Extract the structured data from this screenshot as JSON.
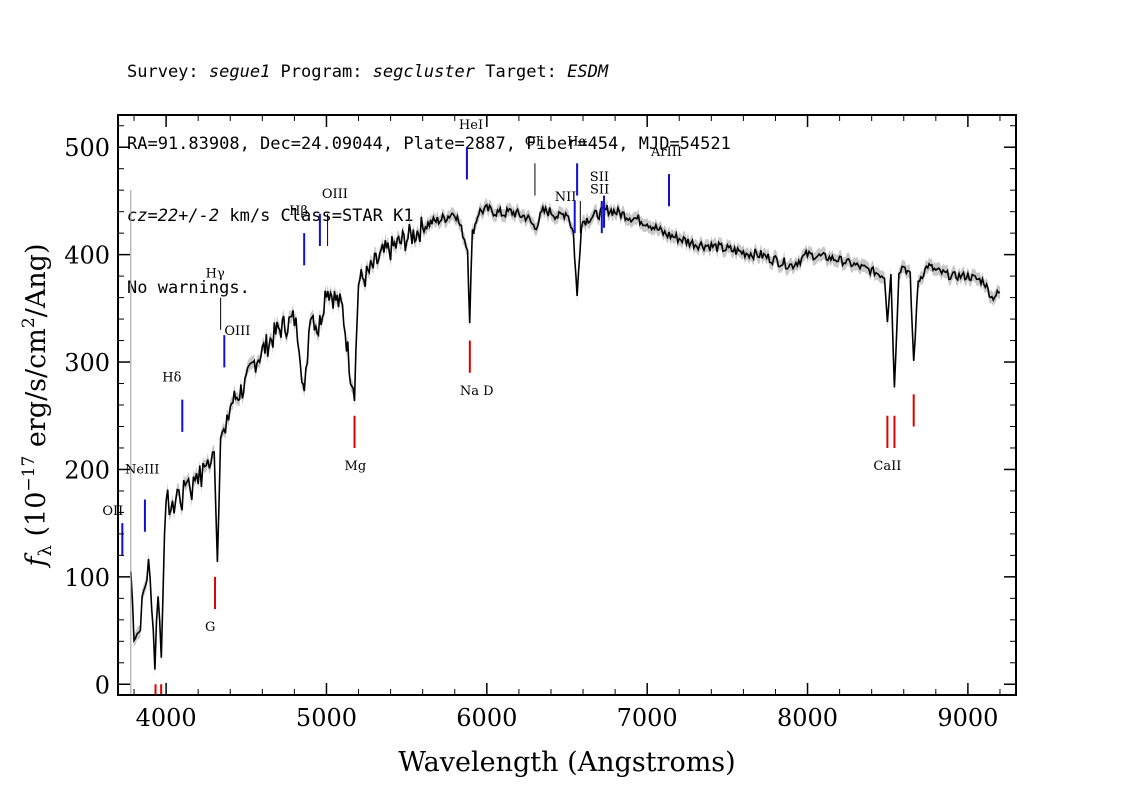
{
  "header": {
    "survey_label": "Survey: ",
    "survey": "segue1",
    "program_label": " Program: ",
    "program": "segcluster",
    "target_label": " Target: ",
    "target": "ESDM",
    "line2": "RA=91.83908, Dec=24.09044, Plate=2887, Fiber=454, MJD=54521",
    "cz": "cz=22+/-2",
    "line3_rest": " km/s Class=STAR K1",
    "line4": "No warnings."
  },
  "chart_data": {
    "type": "line",
    "title": "",
    "xlabel": "Wavelength (Angstroms)",
    "ylabel": "f_λ (10^-17 erg/s/cm^2/Ang)",
    "xlim": [
      3700,
      9300
    ],
    "ylim": [
      -10,
      530
    ],
    "xticks": [
      4000,
      5000,
      6000,
      7000,
      8000,
      9000
    ],
    "yticks": [
      0,
      100,
      200,
      300,
      400,
      500
    ],
    "grid": false,
    "colors": {
      "spectrum": "#000000",
      "error": "#b0b0b0",
      "emission": "#1010d0",
      "absorption": "#e00000"
    },
    "series": [
      {
        "x": [
          3780,
          3800,
          3830,
          3860,
          3890,
          3910,
          3930,
          3950,
          3970,
          3990,
          4010,
          4040,
          4070,
          4100,
          4130,
          4160,
          4190,
          4220,
          4250,
          4280,
          4300,
          4320,
          4340,
          4370,
          4400,
          4450,
          4500,
          4550,
          4600,
          4650,
          4700,
          4750,
          4800,
          4830,
          4862,
          4900,
          4950,
          5000,
          5050,
          5100,
          5150,
          5175,
          5200,
          5250,
          5300,
          5350,
          5400,
          5450,
          5500,
          5550,
          5600,
          5650,
          5700,
          5750,
          5800,
          5850,
          5880,
          5893,
          5910,
          5950,
          6000,
          6050,
          6100,
          6150,
          6200,
          6250,
          6300,
          6350,
          6400,
          6450,
          6500,
          6540,
          6563,
          6590,
          6650,
          6700,
          6750,
          6800,
          6900,
          7000,
          7100,
          7200,
          7300,
          7400,
          7500,
          7600,
          7700,
          7800,
          7900,
          8000,
          8100,
          8200,
          8300,
          8400,
          8480,
          8498,
          8520,
          8542,
          8570,
          8600,
          8640,
          8662,
          8690,
          8750,
          8800,
          8900,
          9000,
          9100,
          9150,
          9200
        ],
        "y": [
          105,
          50,
          48,
          85,
          110,
          80,
          20,
          90,
          25,
          150,
          170,
          160,
          180,
          170,
          195,
          180,
          200,
          190,
          210,
          200,
          225,
          115,
          240,
          230,
          260,
          270,
          280,
          300,
          310,
          320,
          330,
          335,
          340,
          320,
          265,
          350,
          330,
          370,
          360,
          350,
          290,
          275,
          375,
          380,
          390,
          400,
          405,
          410,
          415,
          420,
          425,
          430,
          432,
          435,
          440,
          420,
          405,
          340,
          420,
          440,
          442,
          440,
          438,
          440,
          437,
          435,
          425,
          440,
          440,
          435,
          440,
          420,
          360,
          430,
          435,
          438,
          442,
          440,
          435,
          430,
          420,
          415,
          410,
          408,
          405,
          402,
          400,
          395,
          390,
          400,
          398,
          395,
          390,
          385,
          380,
          340,
          382,
          275,
          385,
          390,
          380,
          300,
          375,
          390,
          385,
          380,
          380,
          375,
          360,
          365
        ]
      }
    ],
    "emission_lines": [
      {
        "label": "OII",
        "wave": 3727
      },
      {
        "label": "NeIII",
        "wave": 3868
      },
      {
        "label": "Hδ",
        "wave": 4101
      },
      {
        "label": "Hγ",
        "wave": 4340
      },
      {
        "label": "OIII",
        "wave": 4363
      },
      {
        "label": "Hβ",
        "wave": 4861
      },
      {
        "label": "OIII",
        "wave": 4959
      },
      {
        "label": "OIII",
        "wave": 5007
      },
      {
        "label": "HeI",
        "wave": 5876
      },
      {
        "label": "OI",
        "wave": 6300
      },
      {
        "label": "NII",
        "wave": 6548
      },
      {
        "label": "Hα",
        "wave": 6563
      },
      {
        "label": "NII",
        "wave": 6583
      },
      {
        "label": "SII",
        "wave": 6717
      },
      {
        "label": "SII",
        "wave": 6731
      },
      {
        "label": "ArIII",
        "wave": 7136
      }
    ],
    "absorption_lines": [
      {
        "label": "",
        "wave": 3934
      },
      {
        "label": "",
        "wave": 3969
      },
      {
        "label": "G",
        "wave": 4305
      },
      {
        "label": "Mg",
        "wave": 5175
      },
      {
        "label": "Na D",
        "wave": 5894
      },
      {
        "label": "CaII",
        "wave": 8498
      },
      {
        "label": "CaII",
        "wave": 8542
      },
      {
        "label": "CaII",
        "wave": 8662
      }
    ]
  }
}
